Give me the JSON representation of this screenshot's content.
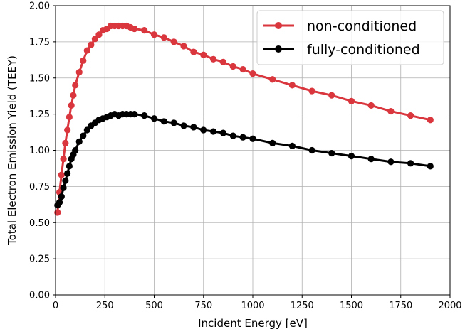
{
  "chart_data": {
    "type": "line",
    "xlabel": "Incident Energy [eV]",
    "ylabel": "Total Electron Emission Yield (TEEY)",
    "xlim": [
      0,
      2000
    ],
    "ylim": [
      0,
      2.0
    ],
    "xticks": [
      "0",
      "250",
      "500",
      "750",
      "1000",
      "1250",
      "1500",
      "1750",
      "2000"
    ],
    "yticks": [
      "0.00",
      "0.25",
      "0.50",
      "0.75",
      "1.00",
      "1.25",
      "1.50",
      "1.75",
      "2.00"
    ],
    "grid": true,
    "legend_position": "top-right",
    "series": [
      {
        "name": "non-conditioned",
        "color": "#d9363e",
        "x": [
          10,
          20,
          30,
          40,
          50,
          60,
          70,
          80,
          90,
          100,
          120,
          140,
          160,
          180,
          200,
          220,
          240,
          260,
          280,
          300,
          320,
          340,
          360,
          380,
          400,
          450,
          500,
          550,
          600,
          650,
          700,
          750,
          800,
          850,
          900,
          950,
          1000,
          1100,
          1200,
          1300,
          1400,
          1500,
          1600,
          1700,
          1800,
          1900
        ],
        "y": [
          0.57,
          0.71,
          0.83,
          0.94,
          1.05,
          1.14,
          1.23,
          1.31,
          1.38,
          1.45,
          1.54,
          1.62,
          1.69,
          1.73,
          1.77,
          1.8,
          1.83,
          1.84,
          1.86,
          1.86,
          1.86,
          1.86,
          1.86,
          1.85,
          1.84,
          1.83,
          1.8,
          1.78,
          1.75,
          1.72,
          1.68,
          1.66,
          1.63,
          1.61,
          1.58,
          1.56,
          1.53,
          1.49,
          1.45,
          1.41,
          1.38,
          1.34,
          1.31,
          1.27,
          1.24,
          1.21
        ]
      },
      {
        "name": "fully-conditioned",
        "color": "#000000",
        "x": [
          10,
          20,
          30,
          40,
          50,
          60,
          70,
          80,
          90,
          100,
          120,
          140,
          160,
          180,
          200,
          220,
          240,
          260,
          280,
          300,
          320,
          340,
          360,
          380,
          400,
          450,
          500,
          550,
          600,
          650,
          700,
          750,
          800,
          850,
          900,
          950,
          1000,
          1100,
          1200,
          1300,
          1400,
          1500,
          1600,
          1700,
          1800,
          1900
        ],
        "y": [
          0.62,
          0.64,
          0.68,
          0.74,
          0.79,
          0.84,
          0.89,
          0.94,
          0.97,
          1.0,
          1.06,
          1.1,
          1.14,
          1.17,
          1.19,
          1.21,
          1.22,
          1.23,
          1.24,
          1.25,
          1.24,
          1.25,
          1.25,
          1.25,
          1.25,
          1.24,
          1.22,
          1.2,
          1.19,
          1.17,
          1.16,
          1.14,
          1.13,
          1.12,
          1.1,
          1.09,
          1.08,
          1.05,
          1.03,
          1.0,
          0.98,
          0.96,
          0.94,
          0.92,
          0.91,
          0.89
        ]
      }
    ]
  }
}
